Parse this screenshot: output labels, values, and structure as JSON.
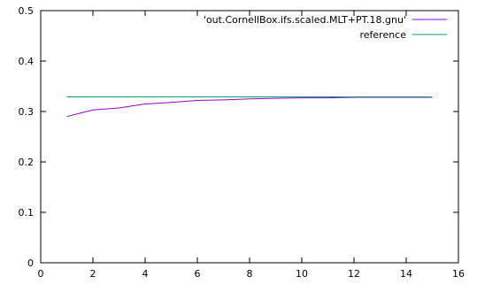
{
  "chart_data": {
    "type": "line",
    "title": "",
    "xlabel": "",
    "ylabel": "",
    "xlim": [
      0,
      16
    ],
    "ylim": [
      0,
      0.5
    ],
    "xticks": [
      0,
      2,
      4,
      6,
      8,
      10,
      12,
      14,
      16
    ],
    "yticks": [
      0,
      0.1,
      0.2,
      0.3,
      0.4,
      0.5
    ],
    "xtick_labels": [
      "0",
      "2",
      "4",
      "6",
      "8",
      "10",
      "12",
      "14",
      "16"
    ],
    "ytick_labels": [
      "0",
      "0.1",
      "0.2",
      "0.3",
      "0.4",
      "0.5"
    ],
    "grid": false,
    "legend_position": "top-right",
    "series": [
      {
        "name": "'out.CornellBox.ifs.scaled.MLT+PT.18.gnu'",
        "color": "#9400d3",
        "x": [
          1,
          2,
          3,
          4,
          5,
          6,
          7,
          8,
          9,
          10,
          11,
          12,
          13,
          14,
          15
        ],
        "y": [
          0.29,
          0.303,
          0.307,
          0.315,
          0.318,
          0.322,
          0.323,
          0.325,
          0.326,
          0.327,
          0.327,
          0.328,
          0.328,
          0.328,
          0.328
        ]
      },
      {
        "name": "reference",
        "color": "#009e73",
        "x": [
          1,
          15
        ],
        "y": [
          0.329,
          0.329
        ]
      }
    ]
  }
}
